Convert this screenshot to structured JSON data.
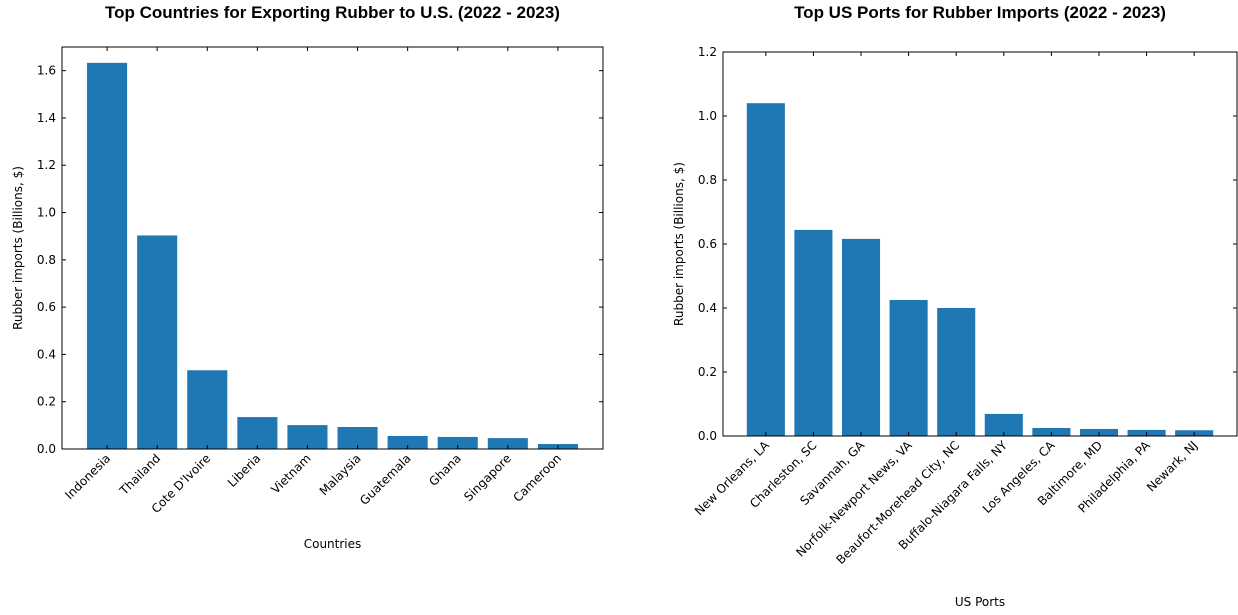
{
  "chart_data": [
    {
      "type": "bar",
      "title": "Top Countries for Exporting Rubber to U.S. (2022 - 2023)",
      "x_label": "Countries",
      "y_label": "Rubber imports (Billions, $)",
      "categories": [
        "Indonesia",
        "Thailand",
        "Cote D'Ivoire",
        "Liberia",
        "Vietnam",
        "Malaysia",
        "Guatemala",
        "Ghana",
        "Singapore",
        "Cameroon"
      ],
      "values": [
        1.633,
        0.903,
        0.333,
        0.135,
        0.101,
        0.093,
        0.055,
        0.051,
        0.046,
        0.021
      ],
      "color": "#1f77b4",
      "ylim": [
        0,
        1.7
      ],
      "yticks": [
        {
          "value": 0,
          "label": "0.0"
        },
        0.2,
        0.4,
        0.6,
        0.8,
        {
          "value": 1,
          "label": "1.0"
        },
        1.2,
        1.4,
        1.6
      ]
    },
    {
      "type": "bar",
      "title": "Top US Ports for Rubber Imports (2022 - 2023)",
      "x_label": "US Ports",
      "y_label": "Rubber imports (Billions, $)",
      "categories": [
        "New Orleans, LA",
        "Charleston, SC",
        "Savannah, GA",
        "Norfolk-Newport News, VA",
        "Beaufort-Morehead City, NC",
        "Buffalo-Niagara Falls, NY",
        "Los Angeles, CA",
        "Baltimore, MD",
        "Philadelphia, PA",
        "Newark, NJ"
      ],
      "values": [
        1.04,
        0.644,
        0.616,
        0.425,
        0.4,
        0.069,
        0.025,
        0.022,
        0.019,
        0.018
      ],
      "color": "#1f77b4",
      "ylim": [
        0,
        1.2
      ],
      "yticks": [
        {
          "value": 0,
          "label": "0.0"
        },
        0.2,
        0.4,
        0.6,
        0.8,
        {
          "value": 1,
          "label": "1.0"
        },
        1.2
      ]
    }
  ]
}
